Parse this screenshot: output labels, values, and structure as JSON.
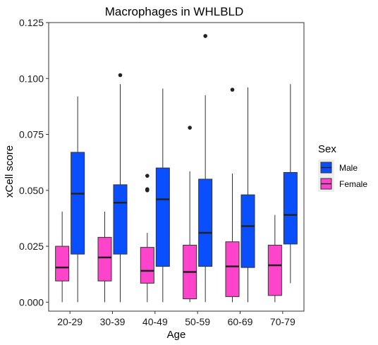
{
  "chart_data": {
    "type": "boxplot",
    "title": "Macrophages in WHLBLD",
    "xlabel": "Age",
    "ylabel": "xCell score",
    "ylim": [
      -0.004,
      0.125
    ],
    "yticks": [
      0.0,
      0.025,
      0.05,
      0.075,
      0.1,
      0.125
    ],
    "ytick_labels": [
      "0.000",
      "0.025",
      "0.050",
      "0.075",
      "0.100",
      "0.125"
    ],
    "categories": [
      "20-29",
      "30-39",
      "40-49",
      "50-59",
      "60-69",
      "70-79"
    ],
    "grid": false,
    "legend": {
      "title": "Sex",
      "position": "right",
      "entries": [
        {
          "key": "Male",
          "label": "Male",
          "color": "#0a4fff"
        },
        {
          "key": "Female",
          "label": "Female",
          "color": "#ff44cc"
        }
      ]
    },
    "series": [
      {
        "name": "Female",
        "color": "#ff44cc",
        "boxes": [
          {
            "min": 0.0,
            "q1": 0.0095,
            "median": 0.0155,
            "q3": 0.025,
            "max": 0.0405,
            "outliers": []
          },
          {
            "min": 0.0,
            "q1": 0.0095,
            "median": 0.02,
            "q3": 0.029,
            "max": 0.0405,
            "outliers": []
          },
          {
            "min": 0.0,
            "q1": 0.0085,
            "median": 0.014,
            "q3": 0.0245,
            "max": 0.031,
            "outliers": [
              0.0565,
              0.0505,
              0.05
            ]
          },
          {
            "min": 0.0,
            "q1": 0.0015,
            "median": 0.0135,
            "q3": 0.0255,
            "max": 0.0585,
            "outliers": [
              0.078
            ]
          },
          {
            "min": 0.0,
            "q1": 0.0025,
            "median": 0.016,
            "q3": 0.027,
            "max": 0.0575,
            "outliers": [
              0.095
            ]
          },
          {
            "min": 0.0,
            "q1": 0.003,
            "median": 0.0165,
            "q3": 0.0255,
            "max": 0.039,
            "outliers": []
          }
        ]
      },
      {
        "name": "Male",
        "color": "#0a4fff",
        "boxes": [
          {
            "min": 0.0,
            "q1": 0.0215,
            "median": 0.0485,
            "q3": 0.067,
            "max": 0.092,
            "outliers": []
          },
          {
            "min": 0.0,
            "q1": 0.0215,
            "median": 0.0445,
            "q3": 0.0525,
            "max": 0.0975,
            "outliers": [
              0.1015
            ]
          },
          {
            "min": 0.0,
            "q1": 0.016,
            "median": 0.046,
            "q3": 0.06,
            "max": 0.0955,
            "outliers": []
          },
          {
            "min": 0.0,
            "q1": 0.016,
            "median": 0.031,
            "q3": 0.055,
            "max": 0.0925,
            "outliers": [
              0.119
            ]
          },
          {
            "min": 0.0,
            "q1": 0.0155,
            "median": 0.034,
            "q3": 0.048,
            "max": 0.096,
            "outliers": []
          },
          {
            "min": 0.0085,
            "q1": 0.026,
            "median": 0.039,
            "q3": 0.058,
            "max": 0.0975,
            "outliers": []
          }
        ]
      }
    ]
  }
}
